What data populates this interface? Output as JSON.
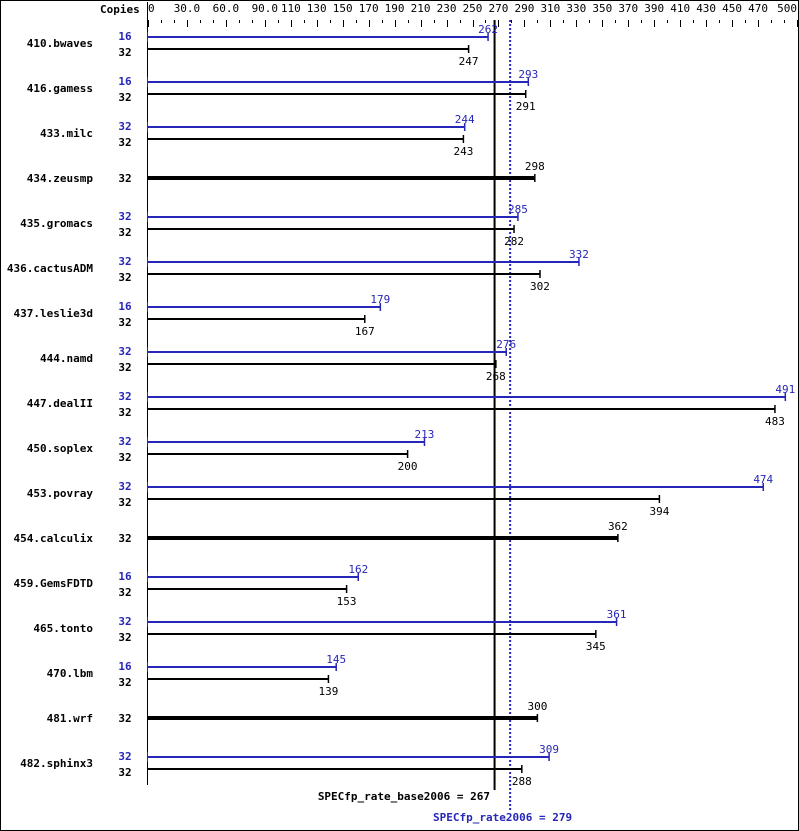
{
  "chart_data": {
    "type": "bar",
    "orientation": "horizontal",
    "copies_header": "Copies",
    "xlim": [
      0,
      500
    ],
    "tick_labels": [
      "0",
      "30.0",
      "60.0",
      "90.0",
      "110",
      "130",
      "150",
      "170",
      "190",
      "210",
      "230",
      "250",
      "270",
      "290",
      "310",
      "330",
      "350",
      "370",
      "390",
      "410",
      "430",
      "450",
      "470",
      "500"
    ],
    "tick_values": [
      0,
      30,
      60,
      90,
      110,
      130,
      150,
      170,
      190,
      210,
      230,
      250,
      270,
      290,
      310,
      330,
      350,
      370,
      390,
      410,
      430,
      450,
      470,
      500
    ],
    "colors": {
      "peak": "#2626b8",
      "base": "#000000"
    },
    "benchmarks": [
      {
        "name": "410.bwaves",
        "peak_copies": "16",
        "peak": 262,
        "base_copies": "32",
        "base": 247
      },
      {
        "name": "416.gamess",
        "peak_copies": "16",
        "peak": 293,
        "base_copies": "32",
        "base": 291
      },
      {
        "name": "433.milc",
        "peak_copies": "32",
        "peak": 244,
        "base_copies": "32",
        "base": 243
      },
      {
        "name": "434.zeusmp",
        "peak_copies": null,
        "peak": null,
        "base_copies": "32",
        "base": 298
      },
      {
        "name": "435.gromacs",
        "peak_copies": "32",
        "peak": 285,
        "base_copies": "32",
        "base": 282
      },
      {
        "name": "436.cactusADM",
        "peak_copies": "32",
        "peak": 332,
        "base_copies": "32",
        "base": 302
      },
      {
        "name": "437.leslie3d",
        "peak_copies": "16",
        "peak": 179,
        "base_copies": "32",
        "base": 167
      },
      {
        "name": "444.namd",
        "peak_copies": "32",
        "peak": 276,
        "base_copies": "32",
        "base": 268
      },
      {
        "name": "447.dealII",
        "peak_copies": "32",
        "peak": 491,
        "base_copies": "32",
        "base": 483
      },
      {
        "name": "450.soplex",
        "peak_copies": "32",
        "peak": 213,
        "base_copies": "32",
        "base": 200
      },
      {
        "name": "453.povray",
        "peak_copies": "32",
        "peak": 474,
        "base_copies": "32",
        "base": 394
      },
      {
        "name": "454.calculix",
        "peak_copies": null,
        "peak": null,
        "base_copies": "32",
        "base": 362
      },
      {
        "name": "459.GemsFDTD",
        "peak_copies": "16",
        "peak": 162,
        "base_copies": "32",
        "base": 153
      },
      {
        "name": "465.tonto",
        "peak_copies": "32",
        "peak": 361,
        "base_copies": "32",
        "base": 345
      },
      {
        "name": "470.lbm",
        "peak_copies": "16",
        "peak": 145,
        "base_copies": "32",
        "base": 139
      },
      {
        "name": "481.wrf",
        "peak_copies": null,
        "peak": null,
        "base_copies": "32",
        "base": 300
      },
      {
        "name": "482.sphinx3",
        "peak_copies": "32",
        "peak": 309,
        "base_copies": "32",
        "base": 288
      }
    ],
    "base_summary": {
      "label": "SPECfp_rate_base2006 = 267",
      "value": 267
    },
    "peak_summary": {
      "label": "SPECfp_rate2006 = 279",
      "value": 279
    }
  }
}
